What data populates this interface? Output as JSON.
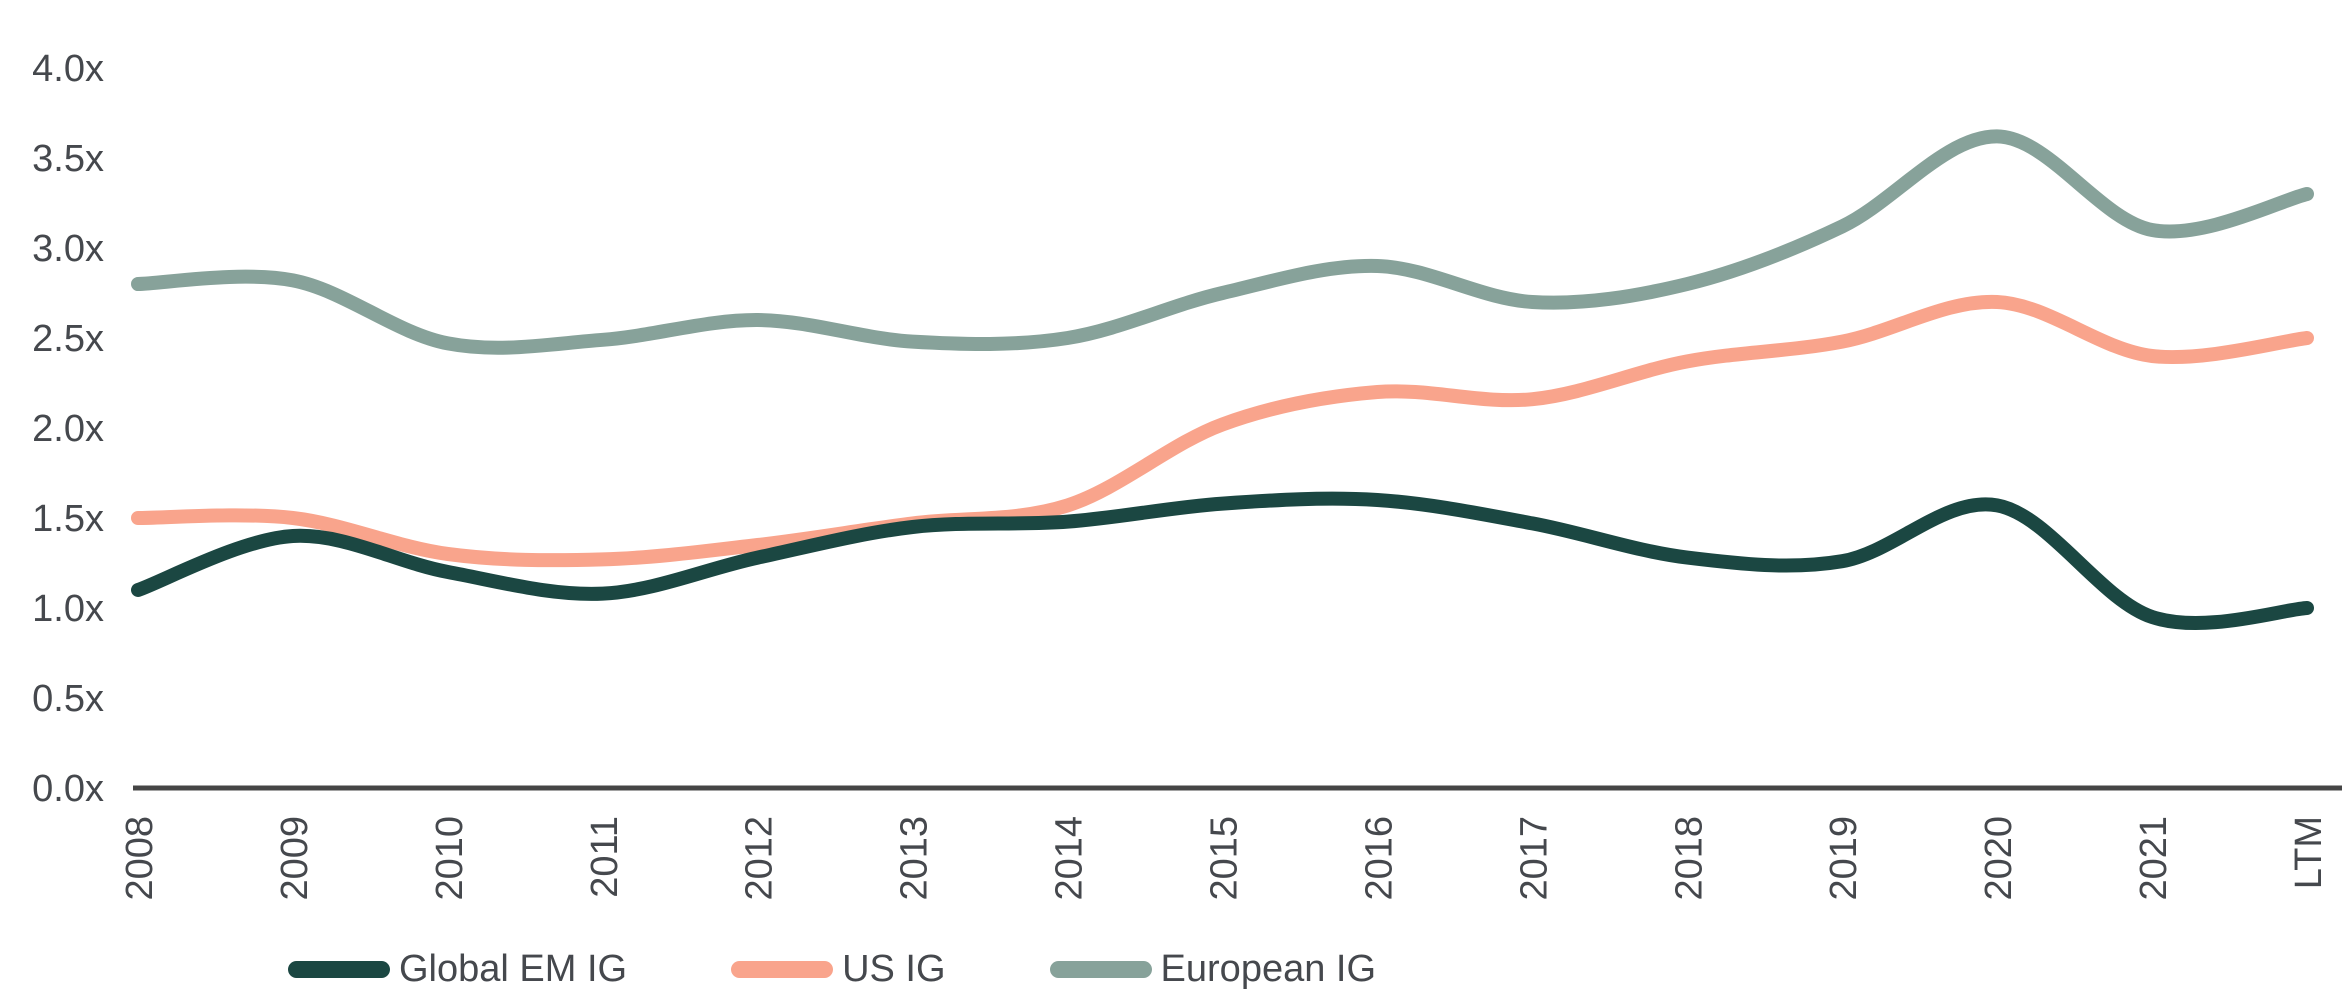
{
  "chart_data": {
    "type": "line",
    "title": "",
    "unit_suffix": "x",
    "grid": "off",
    "legend_position": "bottom",
    "axis_color": "#454545",
    "label_color": "#45484d",
    "background_color": "#ffffff",
    "categories": [
      "2008",
      "2009",
      "2010",
      "2011",
      "2012",
      "2013",
      "2014",
      "2015",
      "2016",
      "2017",
      "2018",
      "2019",
      "2020",
      "2021",
      "LTM"
    ],
    "y_axis": {
      "min": 0.0,
      "max": 4.0,
      "ticks": [
        {
          "label": "4.0x",
          "value": 4.0
        },
        {
          "label": "3.5x",
          "value": 3.5
        },
        {
          "label": "3.0x",
          "value": 3.0
        },
        {
          "label": "2.5x",
          "value": 2.5
        },
        {
          "label": "2.0x",
          "value": 2.0
        },
        {
          "label": "1.5x",
          "value": 1.5
        },
        {
          "label": "1.0x",
          "value": 1.0
        },
        {
          "label": "0.5x",
          "value": 0.5
        },
        {
          "label": "0.0x",
          "value": 0.0
        }
      ]
    },
    "series": [
      {
        "name": "Global EM IG",
        "color": "#1b4742",
        "values": [
          1.1,
          1.4,
          1.2,
          1.08,
          1.28,
          1.45,
          1.48,
          1.58,
          1.6,
          1.47,
          1.28,
          1.26,
          1.57,
          0.95,
          1.0
        ]
      },
      {
        "name": "US IG",
        "color": "#f9a48c",
        "values": [
          1.5,
          1.5,
          1.3,
          1.27,
          1.35,
          1.47,
          1.57,
          2.02,
          2.2,
          2.16,
          2.37,
          2.48,
          2.7,
          2.4,
          2.5
        ]
      },
      {
        "name": "European IG",
        "color": "#87a29a",
        "values": [
          2.8,
          2.82,
          2.47,
          2.49,
          2.6,
          2.48,
          2.5,
          2.75,
          2.9,
          2.7,
          2.8,
          3.12,
          3.62,
          3.1,
          3.3
        ]
      }
    ]
  }
}
